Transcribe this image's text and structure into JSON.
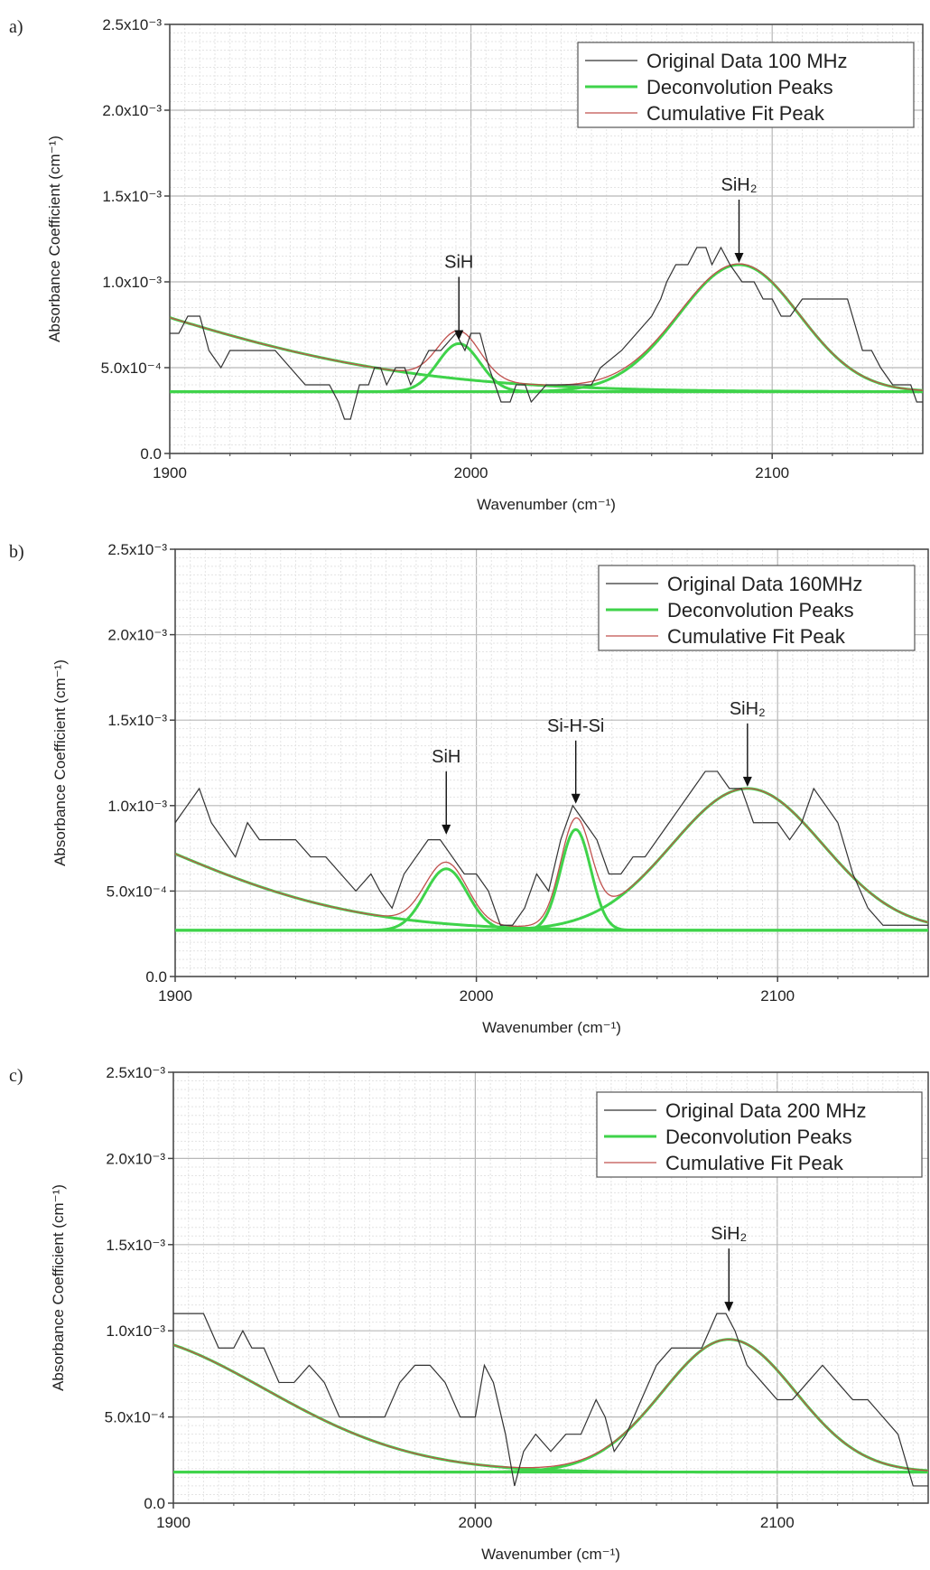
{
  "chart_data": [
    {
      "type": "line",
      "panel_label": "a)",
      "xlabel": "Wavenumber (cm⁻¹)",
      "ylabel": "Absorbance Coefficient (cm⁻¹)",
      "xlim": [
        1900,
        2150
      ],
      "ylim": [
        0,
        0.0025
      ],
      "xticks": [
        {
          "value": 1900,
          "label": "1900"
        },
        {
          "value": 2000,
          "label": "2000"
        },
        {
          "value": 2100,
          "label": "2100"
        }
      ],
      "yticks": [
        {
          "value": 0,
          "label": "0.0"
        },
        {
          "value": 0.0005,
          "label": "5.0x10⁻⁴"
        },
        {
          "value": 0.001,
          "label": "1.0x10⁻³"
        },
        {
          "value": 0.0015,
          "label": "1.5x10⁻³"
        },
        {
          "value": 0.002,
          "label": "2.0x10⁻³"
        },
        {
          "value": 0.0025,
          "label": "2.5x10⁻³"
        }
      ],
      "grid": true,
      "legend_position": "top-right",
      "legend": [
        {
          "name": "Original Data 100 MHz",
          "color": "#333333"
        },
        {
          "name": "Deconvolution Peaks",
          "color": "#3fd34a"
        },
        {
          "name": "Cumulative Fit Peak",
          "color": "#c0504d"
        }
      ],
      "original_data": {
        "x": [
          1900,
          1903,
          1906,
          1910,
          1913,
          1917,
          1920,
          1925,
          1935,
          1940,
          1945,
          1953,
          1956,
          1958,
          1960,
          1963,
          1966,
          1968,
          1970,
          1972,
          1975,
          1978,
          1980,
          1983,
          1986,
          1990,
          1995,
          1998,
          2000,
          2003,
          2006,
          2008,
          2010,
          2013,
          2015,
          2018,
          2020,
          2025,
          2030,
          2035,
          2040,
          2043,
          2050,
          2055,
          2060,
          2063,
          2065,
          2068,
          2072,
          2075,
          2078,
          2080,
          2083,
          2086,
          2090,
          2094,
          2097,
          2100,
          2103,
          2106,
          2110,
          2115,
          2120,
          2125,
          2130,
          2133,
          2136,
          2140,
          2143,
          2146,
          2148,
          2150
        ],
        "y": [
          0.0007,
          0.0007,
          0.0008,
          0.0008,
          0.0006,
          0.0005,
          0.0006,
          0.0006,
          0.0006,
          0.0005,
          0.0004,
          0.0004,
          0.0003,
          0.0002,
          0.0002,
          0.0004,
          0.0004,
          0.0005,
          0.0005,
          0.0004,
          0.0005,
          0.0005,
          0.0004,
          0.0005,
          0.0006,
          0.0006,
          0.0007,
          0.0006,
          0.0007,
          0.0007,
          0.0005,
          0.0004,
          0.0003,
          0.0003,
          0.0004,
          0.0004,
          0.0003,
          0.0004,
          0.0004,
          0.0004,
          0.0004,
          0.0005,
          0.0006,
          0.0007,
          0.0008,
          0.0009,
          0.001,
          0.0011,
          0.0011,
          0.0012,
          0.0012,
          0.0011,
          0.0012,
          0.0011,
          0.001,
          0.001,
          0.0009,
          0.0009,
          0.0008,
          0.0008,
          0.0009,
          0.0009,
          0.0009,
          0.0009,
          0.0006,
          0.0006,
          0.0005,
          0.0004,
          0.0004,
          0.0004,
          0.0003,
          0.0003
        ]
      },
      "fit_model": {
        "baseline": 0.00036,
        "peaks": [
          {
            "center": 1800,
            "amplitude": 0.0008,
            "width": 90
          },
          {
            "center": 1996,
            "amplitude": 0.00028,
            "width": 7
          },
          {
            "center": 2089,
            "amplitude": 0.00074,
            "width": 20
          }
        ]
      },
      "annotations": [
        {
          "text": "SiH",
          "x": 1996,
          "y": 0.00065
        },
        {
          "text": "SiH₂",
          "x": 2089,
          "y": 0.0011
        }
      ]
    },
    {
      "type": "line",
      "panel_label": "b)",
      "xlabel": "Wavenumber (cm⁻¹)",
      "ylabel": "Absorbance Coefficient (cm⁻¹)",
      "xlim": [
        1900,
        2150
      ],
      "ylim": [
        0,
        0.0025
      ],
      "xticks": [
        {
          "value": 1900,
          "label": "1900"
        },
        {
          "value": 2000,
          "label": "2000"
        },
        {
          "value": 2100,
          "label": "2100"
        }
      ],
      "yticks": [
        {
          "value": 0,
          "label": "0.0"
        },
        {
          "value": 0.0005,
          "label": "5.0x10⁻⁴"
        },
        {
          "value": 0.001,
          "label": "1.0x10⁻³"
        },
        {
          "value": 0.0015,
          "label": "1.5x10⁻³"
        },
        {
          "value": 0.002,
          "label": "2.0x10⁻³"
        },
        {
          "value": 0.0025,
          "label": "2.5x10⁻³"
        }
      ],
      "grid": true,
      "legend_position": "top-right",
      "legend": [
        {
          "name": "Original Data 160MHz",
          "color": "#333333"
        },
        {
          "name": "Deconvolution Peaks",
          "color": "#3fd34a"
        },
        {
          "name": "Cumulative Fit Peak",
          "color": "#c0504d"
        }
      ],
      "original_data": {
        "x": [
          1900,
          1904,
          1908,
          1912,
          1916,
          1920,
          1924,
          1928,
          1935,
          1940,
          1945,
          1950,
          1955,
          1960,
          1965,
          1968,
          1972,
          1976,
          1980,
          1984,
          1988,
          1992,
          1996,
          2000,
          2004,
          2008,
          2012,
          2016,
          2020,
          2024,
          2028,
          2032,
          2036,
          2040,
          2044,
          2048,
          2052,
          2056,
          2060,
          2064,
          2068,
          2072,
          2076,
          2080,
          2084,
          2088,
          2092,
          2096,
          2100,
          2104,
          2108,
          2112,
          2116,
          2120,
          2125,
          2130,
          2135,
          2140,
          2145,
          2150
        ],
        "y": [
          0.0009,
          0.001,
          0.0011,
          0.0009,
          0.0008,
          0.0007,
          0.0009,
          0.0008,
          0.0008,
          0.0008,
          0.0007,
          0.0007,
          0.0006,
          0.0005,
          0.0006,
          0.0005,
          0.0004,
          0.0006,
          0.0007,
          0.0008,
          0.0008,
          0.0007,
          0.0006,
          0.0006,
          0.0005,
          0.0003,
          0.0003,
          0.0004,
          0.0006,
          0.0005,
          0.0008,
          0.001,
          0.0009,
          0.0008,
          0.0006,
          0.0006,
          0.0007,
          0.0007,
          0.0008,
          0.0009,
          0.001,
          0.0011,
          0.0012,
          0.0012,
          0.0011,
          0.0011,
          0.0009,
          0.0009,
          0.0009,
          0.0008,
          0.0009,
          0.0011,
          0.001,
          0.0009,
          0.0006,
          0.0004,
          0.0003,
          0.0003,
          0.0003,
          0.0003
        ]
      },
      "fit_model": {
        "baseline": 0.00027,
        "peaks": [
          {
            "center": 1830,
            "amplitude": 0.0008,
            "width": 65
          },
          {
            "center": 1990,
            "amplitude": 0.00036,
            "width": 7
          },
          {
            "center": 2033,
            "amplitude": 0.00059,
            "width": 5
          },
          {
            "center": 2090,
            "amplitude": 0.00083,
            "width": 25
          }
        ]
      },
      "annotations": [
        {
          "text": "SiH",
          "x": 1990,
          "y": 0.00082
        },
        {
          "text": "Si-H-Si",
          "x": 2033,
          "y": 0.001
        },
        {
          "text": "SiH₂",
          "x": 2090,
          "y": 0.0011
        }
      ]
    },
    {
      "type": "line",
      "panel_label": "c)",
      "xlabel": "Wavenumber (cm⁻¹)",
      "ylabel": "Absorbance Coefficient (cm⁻¹)",
      "xlim": [
        1900,
        2150
      ],
      "ylim": [
        0,
        0.0025
      ],
      "xticks": [
        {
          "value": 1900,
          "label": "1900"
        },
        {
          "value": 2000,
          "label": "2000"
        },
        {
          "value": 2100,
          "label": "2100"
        }
      ],
      "yticks": [
        {
          "value": 0,
          "label": "0.0"
        },
        {
          "value": 0.0005,
          "label": "5.0x10⁻⁴"
        },
        {
          "value": 0.001,
          "label": "1.0x10⁻³"
        },
        {
          "value": 0.0015,
          "label": "1.5x10⁻³"
        },
        {
          "value": 0.002,
          "label": "2.0x10⁻³"
        },
        {
          "value": 0.0025,
          "label": "2.5x10⁻³"
        }
      ],
      "grid": true,
      "legend_position": "top-right",
      "legend": [
        {
          "name": "Original Data 200 MHz",
          "color": "#333333"
        },
        {
          "name": "Deconvolution Peaks",
          "color": "#3fd34a"
        },
        {
          "name": "Cumulative Fit Peak",
          "color": "#c0504d"
        }
      ],
      "original_data": {
        "x": [
          1900,
          1905,
          1910,
          1915,
          1920,
          1923,
          1926,
          1930,
          1935,
          1940,
          1945,
          1950,
          1955,
          1960,
          1965,
          1970,
          1975,
          1980,
          1985,
          1990,
          1995,
          2000,
          2003,
          2006,
          2010,
          2013,
          2016,
          2020,
          2025,
          2030,
          2035,
          2040,
          2043,
          2046,
          2050,
          2055,
          2060,
          2065,
          2070,
          2075,
          2080,
          2083,
          2086,
          2090,
          2095,
          2100,
          2105,
          2110,
          2115,
          2120,
          2125,
          2130,
          2135,
          2140,
          2145,
          2150
        ],
        "y": [
          0.0011,
          0.0011,
          0.0011,
          0.0009,
          0.0009,
          0.001,
          0.0009,
          0.0009,
          0.0007,
          0.0007,
          0.0008,
          0.0007,
          0.0005,
          0.0005,
          0.0005,
          0.0005,
          0.0007,
          0.0008,
          0.0008,
          0.0007,
          0.0005,
          0.0005,
          0.0008,
          0.0007,
          0.0004,
          0.0001,
          0.0003,
          0.0004,
          0.0003,
          0.0004,
          0.0004,
          0.0006,
          0.0005,
          0.0003,
          0.0004,
          0.0006,
          0.0008,
          0.0009,
          0.0009,
          0.0009,
          0.0011,
          0.0011,
          0.001,
          0.0008,
          0.0007,
          0.0006,
          0.0006,
          0.0007,
          0.0008,
          0.0007,
          0.0006,
          0.0006,
          0.0005,
          0.0004,
          0.0001,
          0.0001
        ]
      },
      "fit_model": {
        "baseline": 0.00018,
        "peaks": [
          {
            "center": 1880,
            "amplitude": 0.0008,
            "width": 50
          },
          {
            "center": 2084,
            "amplitude": 0.00077,
            "width": 22
          }
        ]
      },
      "annotations": [
        {
          "text": "SiH₂",
          "x": 2084,
          "y": 0.0011
        }
      ]
    }
  ]
}
